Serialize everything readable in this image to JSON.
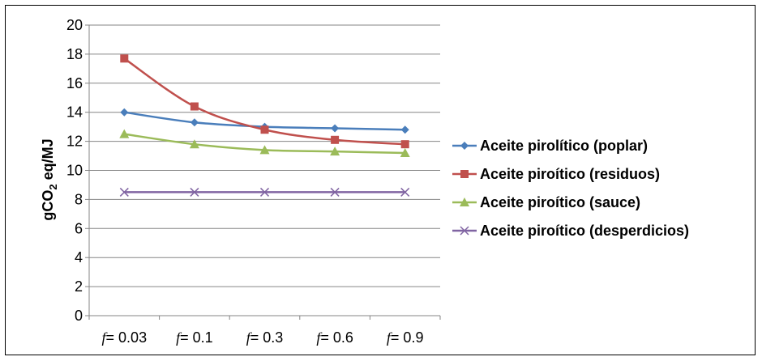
{
  "chart_data": {
    "type": "line",
    "ylabel_main": "gCO",
    "ylabel_sub": "2",
    "ylabel_rest": " eq/MJ",
    "ylim": [
      0,
      20
    ],
    "y_ticks": [
      "0",
      "2",
      "4",
      "6",
      "8",
      "10",
      "12",
      "14",
      "16",
      "18",
      "20"
    ],
    "x_label_prefix": "f",
    "categories": [
      "= 0.03",
      "= 0.1",
      "= 0.3",
      "= 0.6",
      "= 0.9"
    ],
    "grid": true,
    "legend_placement": "right",
    "series": [
      {
        "name": "Aceite pirolítico (poplar)",
        "values": [
          14.0,
          13.3,
          13.0,
          12.9,
          12.8
        ],
        "color": "#4a7ebb",
        "marker": "diamond"
      },
      {
        "name": "Aceite piroítico (residuos)",
        "values": [
          17.7,
          14.4,
          12.8,
          12.1,
          11.8
        ],
        "color": "#c0504d",
        "marker": "square"
      },
      {
        "name": "Aceite piroítico (sauce)",
        "values": [
          12.5,
          11.8,
          11.4,
          11.3,
          11.2
        ],
        "color": "#9bbb59",
        "marker": "triangle"
      },
      {
        "name": "Aceite piroítico (desperdicios)",
        "values": [
          8.5,
          8.5,
          8.5,
          8.5,
          8.5
        ],
        "color": "#8064a2",
        "marker": "x"
      }
    ]
  }
}
